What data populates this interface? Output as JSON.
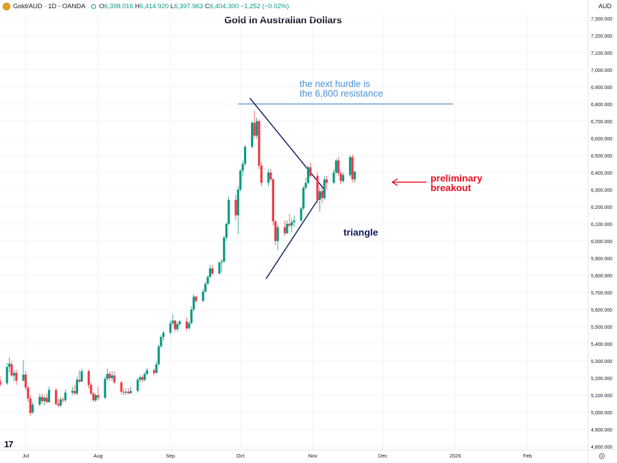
{
  "header": {
    "symbol": "Gold/AUD · 1D · OANDA",
    "ohlc": [
      {
        "k": "O",
        "v": "6,398.016"
      },
      {
        "k": "H",
        "v": "6,414.920"
      },
      {
        "k": "L",
        "v": "6,397.963"
      },
      {
        "k": "C",
        "v": "6,404.300"
      }
    ],
    "change": "−1.252 (−0.02%)",
    "currency": "AUD"
  },
  "icons": {
    "logo": "gold-coin-icon",
    "status": "market-open-dot-icon",
    "brand": "tradingview-logo",
    "settings": "gear-icon"
  },
  "colors": {
    "up": "#089981",
    "down": "#f23645",
    "line": "#0d1a5c",
    "resistance": "#5b9bd5",
    "annotation_blue": "#4a90d9",
    "annotation_red": "#e8111f"
  },
  "chart_data": {
    "type": "candlestick",
    "title": "Gold in Australian Dollars",
    "y_unit": "AUD",
    "ylim": [
      4780,
      7335
    ],
    "y_ticks": [
      "4,800.000",
      "4,900.000",
      "5,000.000",
      "5,100.000",
      "5,200.000",
      "5,300.000",
      "5,400.000",
      "5,500.000",
      "5,600.000",
      "5,700.000",
      "5,800.000",
      "5,900.000",
      "6,000.000",
      "6,100.000",
      "6,200.000",
      "6,300.000",
      "6,400.000",
      "6,500.000",
      "6,600.000",
      "6,700.000",
      "6,800.000",
      "6,900.000",
      "7,000.000",
      "7,100.000",
      "7,200.000",
      "7,300.000"
    ],
    "x_ticks": [
      {
        "label": "Jul",
        "date": "2025-07-01"
      },
      {
        "label": "Aug",
        "date": "2025-08-01"
      },
      {
        "label": "Sep",
        "date": "2025-09-01"
      },
      {
        "label": "Oct",
        "date": "2025-10-01"
      },
      {
        "label": "Nov",
        "date": "2025-11-01"
      },
      {
        "label": "Dec",
        "date": "2025-12-01"
      },
      {
        "label": "2026",
        "date": "2026-01-01"
      },
      {
        "label": "Feb",
        "date": "2026-02-01"
      }
    ],
    "xlim": [
      "2025-06-20",
      "2026-02-27"
    ],
    "candles": [
      [
        "2025-06-20",
        5185,
        5215,
        5150,
        5160
      ],
      [
        "2025-06-23",
        5170,
        5290,
        5160,
        5265
      ],
      [
        "2025-06-24",
        5265,
        5320,
        5230,
        5285
      ],
      [
        "2025-06-25",
        5280,
        5300,
        5205,
        5215
      ],
      [
        "2025-06-26",
        5215,
        5245,
        5180,
        5230
      ],
      [
        "2025-06-27",
        5230,
        5250,
        5160,
        5185
      ],
      [
        "2025-06-30",
        5185,
        5305,
        5180,
        5220
      ],
      [
        "2025-07-01",
        5220,
        5240,
        5130,
        5145
      ],
      [
        "2025-07-02",
        5145,
        5155,
        5060,
        5080
      ],
      [
        "2025-07-03",
        5080,
        5100,
        4980,
        4995
      ],
      [
        "2025-07-04",
        5000,
        5060,
        4990,
        5045
      ],
      [
        "2025-07-07",
        5045,
        5110,
        5035,
        5090
      ],
      [
        "2025-07-08",
        5090,
        5110,
        5050,
        5065
      ],
      [
        "2025-07-09",
        5065,
        5100,
        5040,
        5085
      ],
      [
        "2025-07-10",
        5085,
        5110,
        5050,
        5060
      ],
      [
        "2025-07-11",
        5060,
        5150,
        5055,
        5130
      ],
      [
        "2025-07-14",
        5130,
        5140,
        5040,
        5050
      ],
      [
        "2025-07-15",
        5050,
        5080,
        5030,
        5040
      ],
      [
        "2025-07-16",
        5040,
        5090,
        5030,
        5075
      ],
      [
        "2025-07-17",
        5075,
        5090,
        5055,
        5070
      ],
      [
        "2025-07-18",
        5070,
        5135,
        5060,
        5115
      ],
      [
        "2025-07-21",
        5115,
        5150,
        5100,
        5125
      ],
      [
        "2025-07-22",
        5125,
        5160,
        5100,
        5110
      ],
      [
        "2025-07-23",
        5110,
        5210,
        5100,
        5190
      ],
      [
        "2025-07-24",
        5190,
        5245,
        5170,
        5180
      ],
      [
        "2025-07-25",
        5180,
        5255,
        5175,
        5240
      ],
      [
        "2025-07-28",
        5240,
        5250,
        5140,
        5160
      ],
      [
        "2025-07-29",
        5160,
        5175,
        5100,
        5110
      ],
      [
        "2025-07-30",
        5110,
        5120,
        5060,
        5070
      ],
      [
        "2025-07-31",
        5070,
        5110,
        5060,
        5100
      ],
      [
        "2025-08-01",
        5100,
        5150,
        5070,
        5085
      ],
      [
        "2025-08-04",
        5085,
        5210,
        5080,
        5195
      ],
      [
        "2025-08-05",
        5195,
        5255,
        5185,
        5225
      ],
      [
        "2025-08-06",
        5225,
        5240,
        5185,
        5200
      ],
      [
        "2025-08-07",
        5200,
        5240,
        5185,
        5215
      ],
      [
        "2025-08-08",
        5215,
        5240,
        5165,
        5175
      ],
      [
        "2025-08-11",
        5175,
        5185,
        5105,
        5120
      ],
      [
        "2025-08-12",
        5120,
        5140,
        5100,
        5115
      ],
      [
        "2025-08-13",
        5115,
        5140,
        5100,
        5120
      ],
      [
        "2025-08-14",
        5120,
        5140,
        5105,
        5112
      ],
      [
        "2025-08-15",
        5112,
        5150,
        5105,
        5125
      ],
      [
        "2025-08-18",
        5125,
        5200,
        5115,
        5190
      ],
      [
        "2025-08-19",
        5190,
        5215,
        5175,
        5205
      ],
      [
        "2025-08-20",
        5205,
        5215,
        5175,
        5190
      ],
      [
        "2025-08-21",
        5190,
        5235,
        5180,
        5225
      ],
      [
        "2025-08-22",
        5225,
        5260,
        5215,
        5245
      ],
      [
        "2025-08-25",
        5245,
        5255,
        5215,
        5230
      ],
      [
        "2025-08-26",
        5230,
        5300,
        5225,
        5280
      ],
      [
        "2025-08-27",
        5280,
        5395,
        5275,
        5385
      ],
      [
        "2025-08-28",
        5385,
        5450,
        5375,
        5440
      ],
      [
        "2025-08-29",
        5440,
        5475,
        5420,
        5465
      ],
      [
        "2025-09-01",
        5465,
        5535,
        5455,
        5520
      ],
      [
        "2025-09-02",
        5520,
        5575,
        5505,
        5535
      ],
      [
        "2025-09-03",
        5535,
        5540,
        5470,
        5485
      ],
      [
        "2025-09-04",
        5485,
        5530,
        5470,
        5515
      ],
      [
        "2025-09-05",
        5515,
        5540,
        5505,
        5530
      ],
      [
        "2025-09-08",
        5530,
        5555,
        5475,
        5490
      ],
      [
        "2025-09-09",
        5490,
        5530,
        5485,
        5520
      ],
      [
        "2025-09-10",
        5520,
        5620,
        5515,
        5600
      ],
      [
        "2025-09-11",
        5600,
        5690,
        5590,
        5675
      ],
      [
        "2025-09-12",
        5675,
        5680,
        5640,
        5650
      ],
      [
        "2025-09-15",
        5650,
        5720,
        5645,
        5705
      ],
      [
        "2025-09-16",
        5705,
        5760,
        5700,
        5750
      ],
      [
        "2025-09-17",
        5750,
        5800,
        5745,
        5790
      ],
      [
        "2025-09-18",
        5790,
        5860,
        5785,
        5840
      ],
      [
        "2025-09-19",
        5840,
        5860,
        5800,
        5810
      ],
      [
        "2025-09-22",
        5810,
        5880,
        5805,
        5875
      ],
      [
        "2025-09-23",
        5875,
        5895,
        5820,
        5880
      ],
      [
        "2025-09-24",
        5880,
        6030,
        5875,
        6020
      ],
      [
        "2025-09-25",
        6020,
        6110,
        6000,
        6100
      ],
      [
        "2025-09-26",
        6100,
        6260,
        6090,
        6240
      ],
      [
        "2025-09-29",
        6240,
        6270,
        6120,
        6150
      ],
      [
        "2025-09-30",
        6150,
        6320,
        6040,
        6300
      ],
      [
        "2025-10-01",
        6300,
        6420,
        6290,
        6410
      ],
      [
        "2025-10-02",
        6410,
        6470,
        6380,
        6450
      ],
      [
        "2025-10-03",
        6450,
        6560,
        6440,
        6550
      ],
      [
        "2025-10-06",
        6550,
        6700,
        6540,
        6690
      ],
      [
        "2025-10-07",
        6690,
        6760,
        6600,
        6615
      ],
      [
        "2025-10-08",
        6615,
        6720,
        6600,
        6700
      ],
      [
        "2025-10-09",
        6700,
        6710,
        6420,
        6440
      ],
      [
        "2025-10-10",
        6440,
        6460,
        6320,
        6340
      ],
      [
        "2025-10-13",
        6340,
        6420,
        6320,
        6400
      ],
      [
        "2025-10-14",
        6400,
        6420,
        6350,
        6360
      ],
      [
        "2025-10-15",
        6360,
        6365,
        6090,
        6115
      ],
      [
        "2025-10-16",
        6115,
        6120,
        5975,
        6000
      ],
      [
        "2025-10-17",
        6000,
        6095,
        5945,
        6080
      ],
      [
        "2025-10-20",
        6080,
        6120,
        6030,
        6045
      ],
      [
        "2025-10-21",
        6045,
        6120,
        6040,
        6100
      ],
      [
        "2025-10-22",
        6100,
        6160,
        6080,
        6090
      ],
      [
        "2025-10-23",
        6090,
        6130,
        6050,
        6110
      ],
      [
        "2025-10-24",
        6110,
        6150,
        6080,
        6120
      ],
      [
        "2025-10-27",
        6120,
        6200,
        6110,
        6190
      ],
      [
        "2025-10-28",
        6190,
        6320,
        6180,
        6310
      ],
      [
        "2025-10-29",
        6310,
        6370,
        6300,
        6340
      ],
      [
        "2025-10-30",
        6340,
        6440,
        6330,
        6430
      ],
      [
        "2025-10-31",
        6430,
        6460,
        6370,
        6380
      ],
      [
        "2025-11-03",
        6380,
        6400,
        6220,
        6240
      ],
      [
        "2025-11-04",
        6240,
        6310,
        6170,
        6290
      ],
      [
        "2025-11-05",
        6290,
        6310,
        6220,
        6250
      ],
      [
        "2025-11-06",
        6250,
        6380,
        6240,
        6360
      ],
      [
        "2025-11-07",
        6360,
        6380,
        6300,
        6340
      ],
      [
        "2025-11-10",
        6340,
        6420,
        6330,
        6400
      ],
      [
        "2025-11-11",
        6400,
        6480,
        6390,
        6470
      ],
      [
        "2025-11-12",
        6470,
        6490,
        6380,
        6395
      ],
      [
        "2025-11-13",
        6395,
        6410,
        6330,
        6350
      ],
      [
        "2025-11-14",
        6350,
        6400,
        6340,
        6385
      ],
      [
        "2025-11-17",
        6385,
        6500,
        6375,
        6490
      ],
      [
        "2025-11-18",
        6490,
        6505,
        6340,
        6360
      ],
      [
        "2025-11-19",
        6360,
        6412,
        6340,
        6404
      ]
    ],
    "trendlines": [
      {
        "name": "triangle-upper",
        "from": [
          "2025-10-05",
          6835
        ],
        "to": [
          "2025-11-06",
          6300
        ]
      },
      {
        "name": "triangle-lower",
        "from": [
          "2025-10-12",
          5780
        ],
        "to": [
          "2025-11-06",
          6300
        ]
      }
    ],
    "hlines": [
      {
        "name": "resistance",
        "value": 6800,
        "from": "2025-09-30",
        "to": "2025-12-31"
      }
    ],
    "annotations": [
      {
        "text": "the next hurdle is",
        "color": "blue"
      },
      {
        "text": "the 6,800 resistance",
        "color": "blue"
      },
      {
        "text": "triangle",
        "color": "navy"
      },
      {
        "text": "preliminary",
        "color": "red"
      },
      {
        "text": "breakout",
        "color": "red"
      }
    ]
  }
}
